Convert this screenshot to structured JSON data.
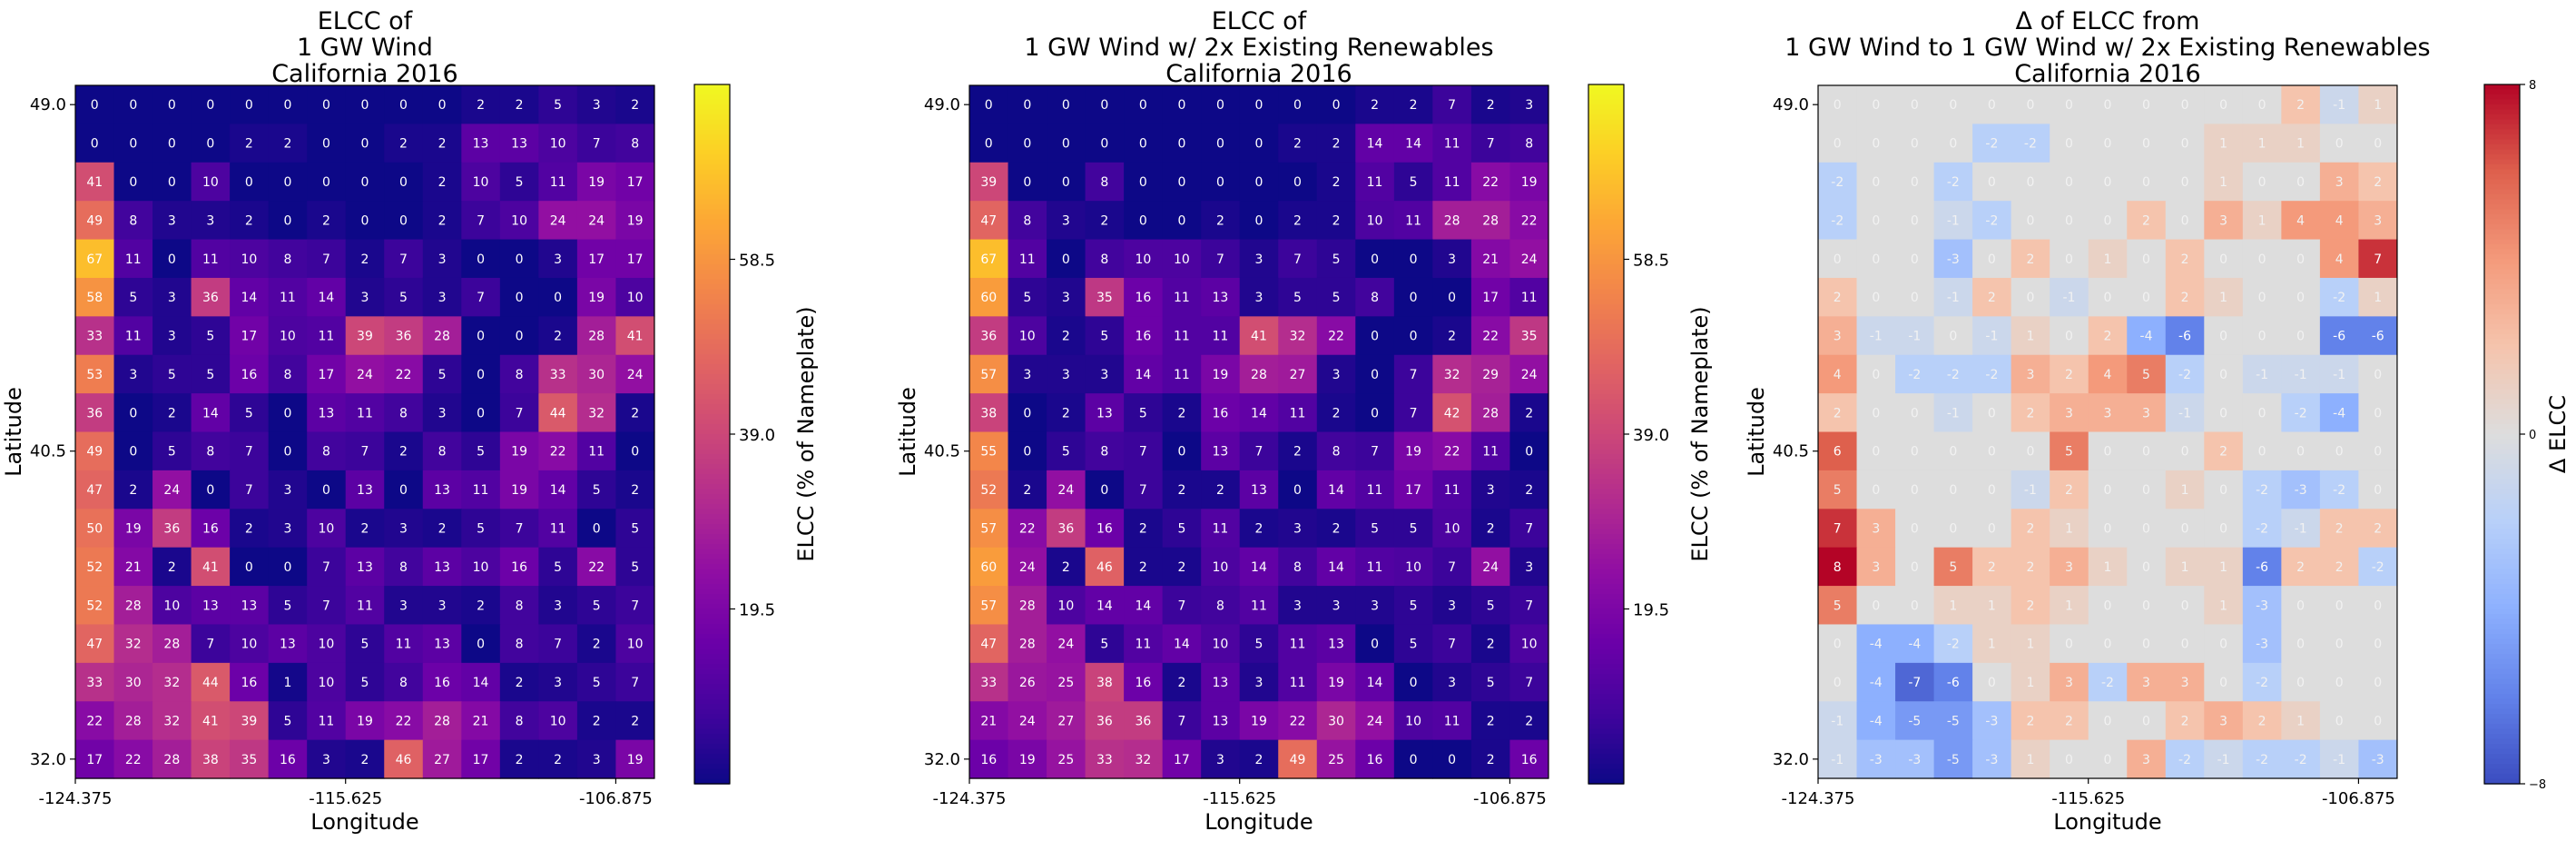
{
  "chart_data": [
    {
      "type": "heatmap",
      "title": [
        "ELCC of",
        "1 GW Wind",
        "California 2016"
      ],
      "xlabel": "Longitude",
      "ylabel": "Latitude",
      "x_ticks": [
        "-124.375",
        "-115.625",
        "-106.875"
      ],
      "y_ticks": [
        "49.0",
        "40.5",
        "32.0"
      ],
      "colorbar": {
        "label": "ELCC (% of Nameplate)",
        "cmap": "plasma",
        "range": [
          0,
          78
        ],
        "ticks": [
          "19.5",
          "39.0",
          "58.5"
        ]
      },
      "values": [
        [
          0,
          0,
          0,
          0,
          0,
          0,
          0,
          0,
          0,
          0,
          2,
          2,
          5,
          3,
          2
        ],
        [
          0,
          0,
          0,
          0,
          2,
          2,
          0,
          0,
          2,
          2,
          13,
          13,
          10,
          7,
          8
        ],
        [
          41,
          0,
          0,
          10,
          0,
          0,
          0,
          0,
          0,
          2,
          10,
          5,
          11,
          19,
          17
        ],
        [
          49,
          8,
          3,
          3,
          2,
          0,
          2,
          0,
          0,
          2,
          7,
          10,
          24,
          24,
          19
        ],
        [
          67,
          11,
          0,
          11,
          10,
          8,
          7,
          2,
          7,
          3,
          0,
          0,
          3,
          17,
          17
        ],
        [
          58,
          5,
          3,
          36,
          14,
          11,
          14,
          3,
          5,
          3,
          7,
          0,
          0,
          19,
          10
        ],
        [
          33,
          11,
          3,
          5,
          17,
          10,
          11,
          39,
          36,
          28,
          0,
          0,
          2,
          28,
          41
        ],
        [
          53,
          3,
          5,
          5,
          16,
          8,
          17,
          24,
          22,
          5,
          0,
          8,
          33,
          30,
          24
        ],
        [
          36,
          0,
          2,
          14,
          5,
          0,
          13,
          11,
          8,
          3,
          0,
          7,
          44,
          32,
          2
        ],
        [
          49,
          0,
          5,
          8,
          7,
          0,
          8,
          7,
          2,
          8,
          5,
          19,
          22,
          11,
          0
        ],
        [
          47,
          2,
          24,
          0,
          7,
          3,
          0,
          13,
          0,
          13,
          11,
          19,
          14,
          5,
          2
        ],
        [
          50,
          19,
          36,
          16,
          2,
          3,
          10,
          2,
          3,
          2,
          5,
          7,
          11,
          0,
          5
        ],
        [
          52,
          21,
          2,
          41,
          0,
          0,
          7,
          13,
          8,
          13,
          10,
          16,
          5,
          22,
          5
        ],
        [
          52,
          28,
          10,
          13,
          13,
          5,
          7,
          11,
          3,
          3,
          2,
          8,
          3,
          5,
          7
        ],
        [
          47,
          32,
          28,
          7,
          10,
          13,
          10,
          5,
          11,
          13,
          0,
          8,
          7,
          2,
          10
        ],
        [
          33,
          30,
          32,
          44,
          16,
          1,
          10,
          5,
          8,
          16,
          14,
          2,
          3,
          5,
          7
        ],
        [
          22,
          28,
          32,
          41,
          39,
          5,
          11,
          19,
          22,
          28,
          21,
          8,
          10,
          2,
          2
        ],
        [
          17,
          22,
          28,
          38,
          35,
          16,
          3,
          2,
          46,
          27,
          17,
          2,
          2,
          3,
          19
        ]
      ]
    },
    {
      "type": "heatmap",
      "title": [
        "ELCC of",
        "1 GW Wind w/ 2x Existing Renewables",
        "California 2016"
      ],
      "xlabel": "Longitude",
      "ylabel": "Latitude",
      "x_ticks": [
        "-124.375",
        "-115.625",
        "-106.875"
      ],
      "y_ticks": [
        "49.0",
        "40.5",
        "32.0"
      ],
      "colorbar": {
        "label": "ELCC (% of Nameplate)",
        "cmap": "plasma",
        "range": [
          0,
          78
        ],
        "ticks": [
          "19.5",
          "39.0",
          "58.5"
        ]
      },
      "values": [
        [
          0,
          0,
          0,
          0,
          0,
          0,
          0,
          0,
          0,
          0,
          2,
          2,
          7,
          2,
          3
        ],
        [
          0,
          0,
          0,
          0,
          0,
          0,
          0,
          0,
          2,
          2,
          14,
          14,
          11,
          7,
          8
        ],
        [
          39,
          0,
          0,
          8,
          0,
          0,
          0,
          0,
          0,
          2,
          11,
          5,
          11,
          22,
          19
        ],
        [
          47,
          8,
          3,
          2,
          0,
          0,
          2,
          0,
          2,
          2,
          10,
          11,
          28,
          28,
          22
        ],
        [
          67,
          11,
          0,
          8,
          10,
          10,
          7,
          3,
          7,
          5,
          0,
          0,
          3,
          21,
          24
        ],
        [
          60,
          5,
          3,
          35,
          16,
          11,
          13,
          3,
          5,
          5,
          8,
          0,
          0,
          17,
          11
        ],
        [
          36,
          10,
          2,
          5,
          16,
          11,
          11,
          41,
          32,
          22,
          0,
          0,
          2,
          22,
          35
        ],
        [
          57,
          3,
          3,
          3,
          14,
          11,
          19,
          28,
          27,
          3,
          0,
          7,
          32,
          29,
          24
        ],
        [
          38,
          0,
          2,
          13,
          5,
          2,
          16,
          14,
          11,
          2,
          0,
          7,
          42,
          28,
          2
        ],
        [
          55,
          0,
          5,
          8,
          7,
          0,
          13,
          7,
          2,
          8,
          7,
          19,
          22,
          11,
          0
        ],
        [
          52,
          2,
          24,
          0,
          7,
          2,
          2,
          13,
          0,
          14,
          11,
          17,
          11,
          3,
          2
        ],
        [
          57,
          22,
          36,
          16,
          2,
          5,
          11,
          2,
          3,
          2,
          5,
          5,
          10,
          2,
          7
        ],
        [
          60,
          24,
          2,
          46,
          2,
          2,
          10,
          14,
          8,
          14,
          11,
          10,
          7,
          24,
          3
        ],
        [
          57,
          28,
          10,
          14,
          14,
          7,
          8,
          11,
          3,
          3,
          3,
          5,
          3,
          5,
          7
        ],
        [
          47,
          28,
          24,
          5,
          11,
          14,
          10,
          5,
          11,
          13,
          0,
          5,
          7,
          2,
          10
        ],
        [
          33,
          26,
          25,
          38,
          16,
          2,
          13,
          3,
          11,
          19,
          14,
          0,
          3,
          5,
          7
        ],
        [
          21,
          24,
          27,
          36,
          36,
          7,
          13,
          19,
          22,
          30,
          24,
          10,
          11,
          2,
          2
        ],
        [
          16,
          19,
          25,
          33,
          32,
          17,
          3,
          2,
          49,
          25,
          16,
          0,
          0,
          2,
          16
        ]
      ]
    },
    {
      "type": "heatmap",
      "title": [
        "Δ of ELCC from",
        "1 GW Wind to 1 GW Wind w/ 2x Existing Renewables",
        "California 2016"
      ],
      "xlabel": "Longitude",
      "ylabel": "Latitude",
      "x_ticks": [
        "-124.375",
        "-115.625",
        "-106.875"
      ],
      "y_ticks": [
        "49.0",
        "40.5",
        "32.0"
      ],
      "colorbar": {
        "label": "Δ ELCC",
        "cmap": "coolwarm",
        "range": [
          -8,
          8
        ],
        "ticks": [
          "−8",
          "0",
          "8"
        ]
      },
      "values": [
        [
          0,
          0,
          0,
          0,
          0,
          0,
          0,
          0,
          0,
          0,
          0,
          0,
          2,
          -1,
          1
        ],
        [
          0,
          0,
          0,
          0,
          -2,
          -2,
          0,
          0,
          0,
          0,
          1,
          1,
          1,
          0,
          0
        ],
        [
          -2,
          0,
          0,
          -2,
          0,
          0,
          0,
          0,
          0,
          0,
          1,
          0,
          0,
          3,
          2
        ],
        [
          -2,
          0,
          0,
          -1,
          -2,
          0,
          0,
          0,
          2,
          0,
          3,
          1,
          4,
          4,
          3
        ],
        [
          0,
          0,
          0,
          -3,
          0,
          2,
          0,
          1,
          0,
          2,
          0,
          0,
          0,
          4,
          7
        ],
        [
          2,
          0,
          0,
          -1,
          2,
          0,
          -1,
          0,
          0,
          2,
          1,
          0,
          0,
          -2,
          1
        ],
        [
          3,
          -1,
          -1,
          0,
          -1,
          1,
          0,
          2,
          -4,
          -6,
          0,
          0,
          0,
          -6,
          -6
        ],
        [
          4,
          0,
          -2,
          -2,
          -2,
          3,
          2,
          4,
          5,
          -2,
          0,
          -1,
          -1,
          -1,
          0
        ],
        [
          2,
          0,
          0,
          -1,
          0,
          2,
          3,
          3,
          3,
          -1,
          0,
          0,
          -2,
          -4,
          0
        ],
        [
          6,
          0,
          0,
          0,
          0,
          0,
          5,
          0,
          0,
          0,
          2,
          0,
          0,
          0,
          0
        ],
        [
          5,
          0,
          0,
          0,
          0,
          -1,
          2,
          0,
          0,
          1,
          0,
          -2,
          -3,
          -2,
          0
        ],
        [
          7,
          3,
          0,
          0,
          0,
          2,
          1,
          0,
          0,
          0,
          0,
          -2,
          -1,
          2,
          2
        ],
        [
          8,
          3,
          0,
          5,
          2,
          2,
          3,
          1,
          0,
          1,
          1,
          -6,
          2,
          2,
          -2
        ],
        [
          5,
          0,
          0,
          1,
          1,
          2,
          1,
          0,
          0,
          0,
          1,
          -3,
          0,
          0,
          0
        ],
        [
          0,
          -4,
          -4,
          -2,
          1,
          1,
          0,
          0,
          0,
          0,
          0,
          -3,
          0,
          0,
          0
        ],
        [
          0,
          -4,
          -7,
          -6,
          0,
          1,
          3,
          -2,
          3,
          3,
          0,
          -2,
          0,
          0,
          0
        ],
        [
          -1,
          -4,
          -5,
          -5,
          -3,
          2,
          2,
          0,
          0,
          2,
          3,
          2,
          1,
          0,
          0
        ],
        [
          -1,
          -3,
          -3,
          -5,
          -3,
          1,
          0,
          0,
          3,
          -2,
          -1,
          -2,
          -2,
          -1,
          -3
        ]
      ]
    }
  ]
}
